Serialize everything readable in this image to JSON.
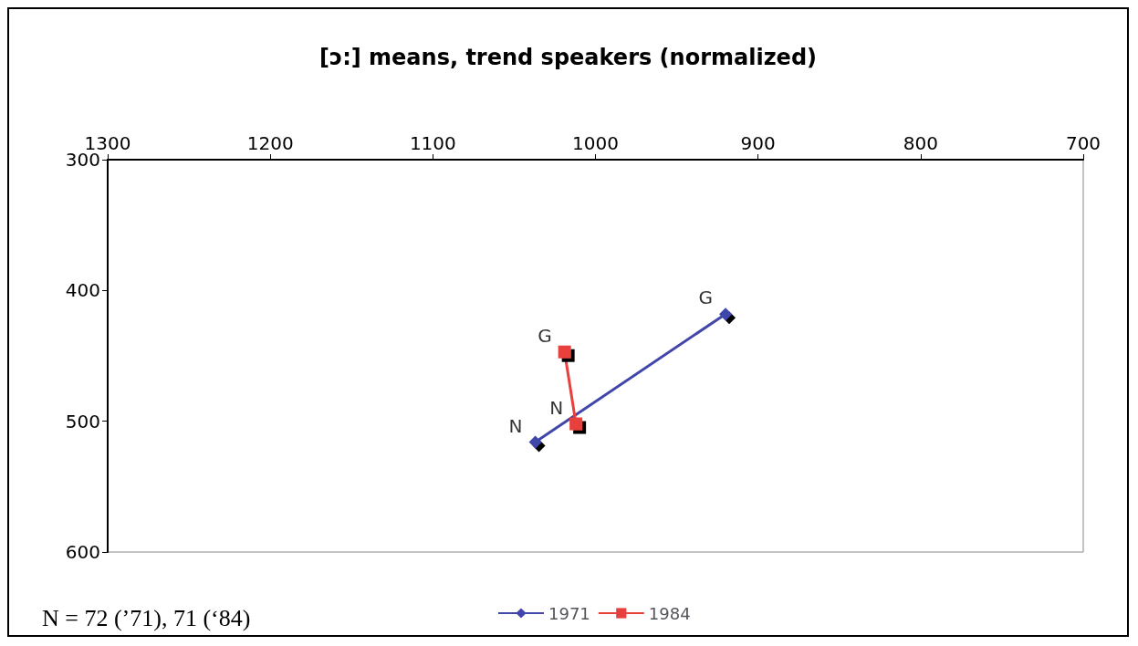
{
  "chart_data": {
    "type": "line",
    "title": "[ɔ:] means, trend speakers (normalized)",
    "xlim": [
      1300,
      700
    ],
    "xticks": [
      1300,
      1200,
      1100,
      1000,
      900,
      800,
      700
    ],
    "ylim": [
      600,
      300
    ],
    "yticks": [
      300,
      400,
      500,
      600
    ],
    "grid": false,
    "legend": "bottom",
    "series": [
      {
        "name": "1971",
        "color": "#4046aa",
        "marker": "diamond",
        "x": [
          1037,
          920
        ],
        "values": [
          516,
          418
        ]
      },
      {
        "name": "1984",
        "color": "#e8403c",
        "marker": "square",
        "x": [
          1019,
          1012
        ],
        "values": [
          447,
          502
        ]
      }
    ],
    "annotations": [
      {
        "text": "N",
        "x": 1037,
        "y": 516
      },
      {
        "text": "G",
        "x": 920,
        "y": 418
      },
      {
        "text": "G",
        "x": 1019,
        "y": 447
      },
      {
        "text": "N",
        "x": 1012,
        "y": 502
      },
      "N = 72 (’71), 71 (‘84)"
    ]
  }
}
